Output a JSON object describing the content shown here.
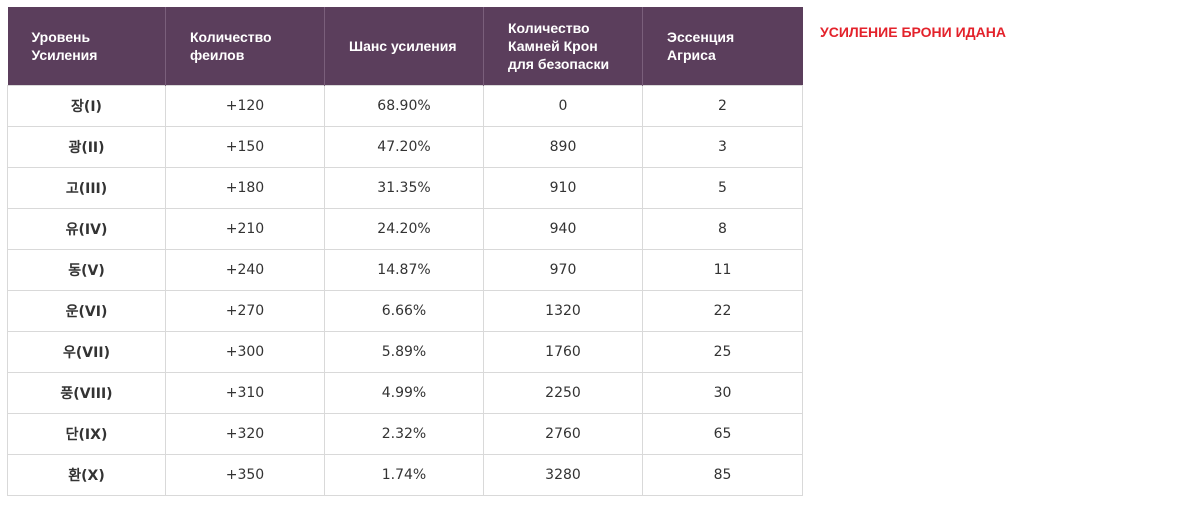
{
  "side_title": "УСИЛЕНИЕ БРОНИ ИДАНА",
  "headers": [
    "Уровень\nУсиления",
    "Количество\nфеилов",
    "Шанс усиления",
    "Количество\nКамней Крон\nдля безопаски",
    "Эссенция\nАгриса"
  ],
  "rows": [
    [
      "장(I)",
      "+120",
      "68.90%",
      "0",
      "2"
    ],
    [
      "광(II)",
      "+150",
      "47.20%",
      "890",
      "3"
    ],
    [
      "고(III)",
      "+180",
      "31.35%",
      "910",
      "5"
    ],
    [
      "유(IV)",
      "+210",
      "24.20%",
      "940",
      "8"
    ],
    [
      "동(V)",
      "+240",
      "14.87%",
      "970",
      "11"
    ],
    [
      "운(VI)",
      "+270",
      "6.66%",
      "1320",
      "22"
    ],
    [
      "우(VII)",
      "+300",
      "5.89%",
      "1760",
      "25"
    ],
    [
      "풍(VIII)",
      "+310",
      "4.99%",
      "2250",
      "30"
    ],
    [
      "단(IX)",
      "+320",
      "2.32%",
      "2760",
      "65"
    ],
    [
      "환(X)",
      "+350",
      "1.74%",
      "3280",
      "85"
    ]
  ],
  "colors": {
    "header_bg": "#5b3e5c",
    "title_red": "#e3222b"
  }
}
